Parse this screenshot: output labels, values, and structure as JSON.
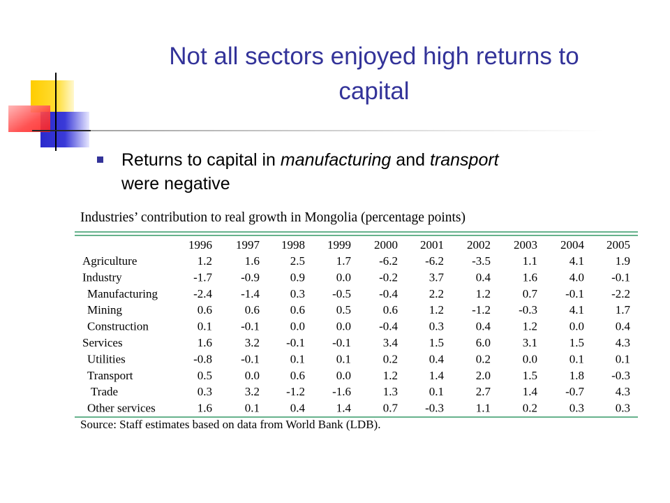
{
  "slide": {
    "title": [
      "Not all sectors enjoyed high returns to",
      "capital"
    ],
    "bullet": [
      "Returns to capital in",
      "manufacturing",
      "and",
      "transport",
      "were negative"
    ],
    "table": {
      "title": "Industries’ contribution to real growth in Mongolia (percentage points)",
      "header": [
        "1996",
        "1997",
        "1998",
        "1999",
        "2000",
        "2001",
        "2002",
        "2003",
        "2004",
        "2005"
      ],
      "rows": [
        [
          "Agriculture",
          "1.2",
          "1.6",
          "2.5",
          "1.7",
          "-6.2",
          "-6.2",
          "-3.5",
          "1.1",
          "4.1",
          "1.9"
        ],
        [
          "Industry",
          "-1.7",
          "-0.9",
          "0.9",
          "0.0",
          "-0.2",
          "3.7",
          "0.4",
          "1.6",
          "4.0",
          "-0.1"
        ],
        [
          "Manufacturing",
          "-2.4",
          "-1.4",
          "0.3",
          "-0.5",
          "-0.4",
          "2.2",
          "1.2",
          "0.7",
          "-0.1",
          "-2.2"
        ],
        [
          "Mining",
          "0.6",
          "0.6",
          "0.6",
          "0.5",
          "0.6",
          "1.2",
          "-1.2",
          "-0.3",
          "4.1",
          "1.7"
        ],
        [
          "Construction",
          "0.1",
          "-0.1",
          "0.0",
          "0.0",
          "-0.4",
          "0.3",
          "0.4",
          "1.2",
          "0.0",
          "0.4"
        ],
        [
          "Services",
          "1.6",
          "3.2",
          "-0.1",
          "-0.1",
          "3.4",
          "1.5",
          "6.0",
          "3.1",
          "1.5",
          "4.3"
        ],
        [
          "Utilities",
          "-0.8",
          "-0.1",
          "0.1",
          "0.1",
          "0.2",
          "0.4",
          "0.2",
          "0.0",
          "0.1",
          "0.1"
        ],
        [
          "Transport",
          "0.5",
          "0.0",
          "0.6",
          "0.0",
          "1.2",
          "1.4",
          "2.0",
          "1.5",
          "1.8",
          "-0.3"
        ],
        [
          "Trade",
          "0.3",
          "3.2",
          "-1.2",
          "-1.6",
          "1.3",
          "0.1",
          "2.7",
          "1.4",
          "-0.7",
          "4.3"
        ],
        [
          "Other services",
          "1.6",
          "0.1",
          "0.4",
          "1.4",
          "0.7",
          "-0.3",
          "1.1",
          "0.2",
          "0.3",
          "0.3"
        ]
      ],
      "source": "Source: Staff estimates based on data from World Bank (LDB)."
    }
  }
}
